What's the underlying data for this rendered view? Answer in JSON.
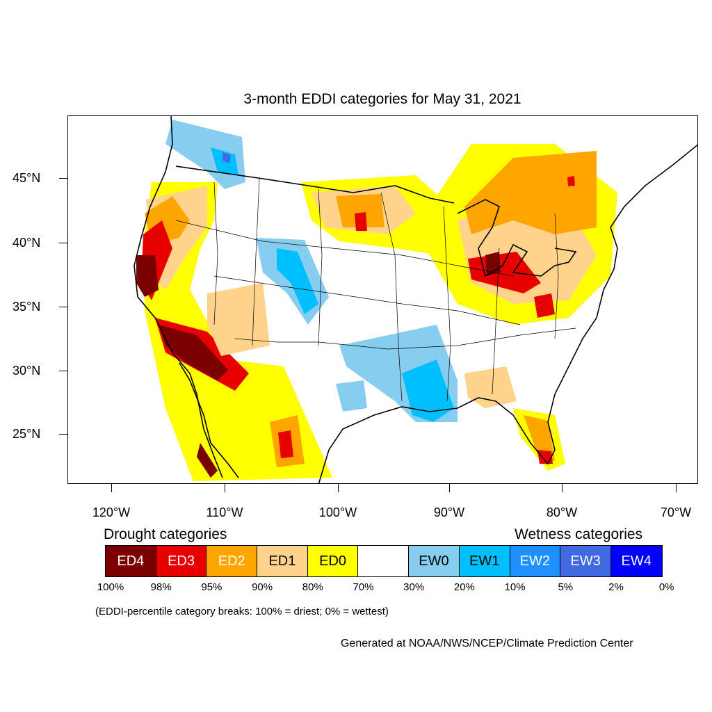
{
  "title": "3-month EDDI categories for May 31, 2021",
  "lat_labels": [
    "45°N",
    "40°N",
    "35°N",
    "30°N",
    "25°N"
  ],
  "lon_labels": [
    "120°W",
    "110°W",
    "100°W",
    "90°W",
    "80°W",
    "70°W"
  ],
  "legend": {
    "drought_heading": "Drought categories",
    "wetness_heading": "Wetness categories",
    "categories": [
      {
        "label": "ED4",
        "color": "#7b0000",
        "text_color": "#ffffff"
      },
      {
        "label": "ED3",
        "color": "#e60000",
        "text_color": "#ffffff"
      },
      {
        "label": "ED2",
        "color": "#ffa500",
        "text_color": "#ffffff"
      },
      {
        "label": "ED1",
        "color": "#ffd38c",
        "text_color": "#000000"
      },
      {
        "label": "ED0",
        "color": "#ffff00",
        "text_color": "#000000"
      },
      {
        "label": "",
        "color": "#ffffff",
        "text_color": "#000000"
      },
      {
        "label": "EW0",
        "color": "#87cdf0",
        "text_color": "#000000"
      },
      {
        "label": "EW1",
        "color": "#00bfff",
        "text_color": "#000000"
      },
      {
        "label": "EW2",
        "color": "#1e90ff",
        "text_color": "#ffffff"
      },
      {
        "label": "EW3",
        "color": "#4169e1",
        "text_color": "#ffffff"
      },
      {
        "label": "EW4",
        "color": "#0000ff",
        "text_color": "#ffffff"
      }
    ],
    "breaks": [
      "100%",
      "98%",
      "95%",
      "90%",
      "80%",
      "70%",
      "30%",
      "20%",
      "10%",
      "5%",
      "2%",
      "0%"
    ]
  },
  "note": "(EDDI-percentile category breaks: 100% = driest; 0% = wettest)",
  "credit": "Generated at NOAA/NWS/NCEP/Climate Prediction Center"
}
